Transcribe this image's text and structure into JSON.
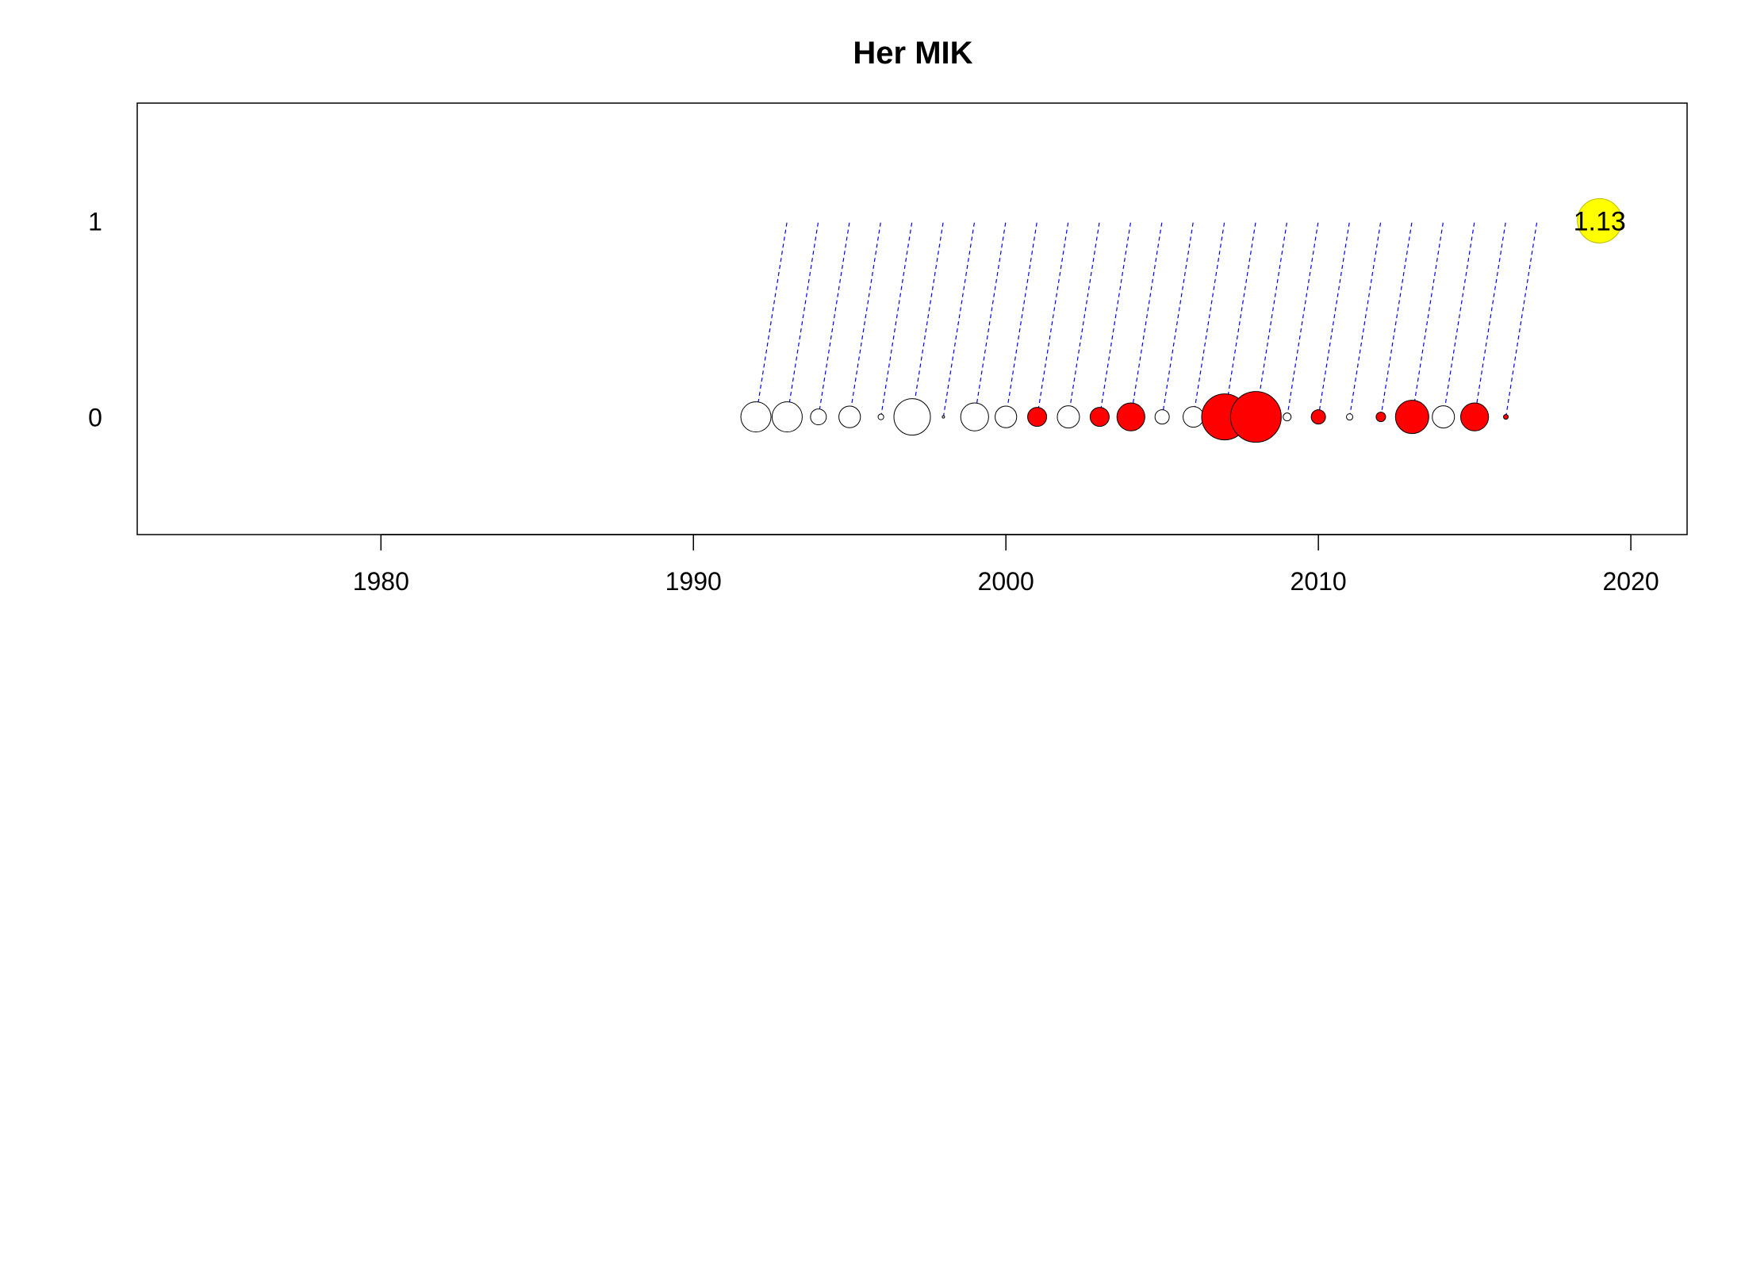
{
  "chart_data": {
    "type": "scatter",
    "title": "Her MIK",
    "xlabel": "",
    "ylabel": "",
    "xlim": [
      1972.2,
      2021.8
    ],
    "ylim": [
      -0.6,
      1.6
    ],
    "x_ticks": [
      1980,
      1990,
      2000,
      2010,
      2020
    ],
    "y_ticks": [
      0,
      1
    ],
    "grid": false,
    "legend": "none",
    "colors": {
      "positive": "#ff0000",
      "negative": "#ffffff",
      "outline": "#000000",
      "connector": "#0000ff",
      "prediction": "#ffff00"
    },
    "residuals": [
      {
        "year": 1992,
        "size": 0.95,
        "sign": "negative"
      },
      {
        "year": 1993,
        "size": 0.95,
        "sign": "negative"
      },
      {
        "year": 1994,
        "size": 0.5,
        "sign": "negative"
      },
      {
        "year": 1995,
        "size": 0.68,
        "sign": "negative"
      },
      {
        "year": 1996,
        "size": 0.18,
        "sign": "negative"
      },
      {
        "year": 1997,
        "size": 1.15,
        "sign": "negative"
      },
      {
        "year": 1998,
        "size": 0.06,
        "sign": "negative"
      },
      {
        "year": 1999,
        "size": 0.88,
        "sign": "negative"
      },
      {
        "year": 2000,
        "size": 0.68,
        "sign": "negative"
      },
      {
        "year": 2001,
        "size": 0.6,
        "sign": "positive"
      },
      {
        "year": 2002,
        "size": 0.7,
        "sign": "negative"
      },
      {
        "year": 2003,
        "size": 0.6,
        "sign": "positive"
      },
      {
        "year": 2004,
        "size": 0.88,
        "sign": "positive"
      },
      {
        "year": 2005,
        "size": 0.45,
        "sign": "negative"
      },
      {
        "year": 2006,
        "size": 0.65,
        "sign": "negative"
      },
      {
        "year": 2007,
        "size": 1.45,
        "sign": "positive"
      },
      {
        "year": 2008,
        "size": 1.6,
        "sign": "positive"
      },
      {
        "year": 2009,
        "size": 0.25,
        "sign": "negative"
      },
      {
        "year": 2010,
        "size": 0.45,
        "sign": "positive"
      },
      {
        "year": 2011,
        "size": 0.2,
        "sign": "negative"
      },
      {
        "year": 2012,
        "size": 0.3,
        "sign": "positive"
      },
      {
        "year": 2013,
        "size": 1.05,
        "sign": "positive"
      },
      {
        "year": 2014,
        "size": 0.7,
        "sign": "negative"
      },
      {
        "year": 2015,
        "size": 0.88,
        "sign": "positive"
      },
      {
        "year": 2016,
        "size": 0.15,
        "sign": "positive"
      }
    ],
    "connectors": [
      {
        "from_year": 1992,
        "to_year": 1993
      },
      {
        "from_year": 1993,
        "to_year": 1994
      },
      {
        "from_year": 1994,
        "to_year": 1995
      },
      {
        "from_year": 1995,
        "to_year": 1996
      },
      {
        "from_year": 1996,
        "to_year": 1997
      },
      {
        "from_year": 1997,
        "to_year": 1998
      },
      {
        "from_year": 1998,
        "to_year": 1999
      },
      {
        "from_year": 1999,
        "to_year": 2000
      },
      {
        "from_year": 2000,
        "to_year": 2001
      },
      {
        "from_year": 2001,
        "to_year": 2002
      },
      {
        "from_year": 2002,
        "to_year": 2003
      },
      {
        "from_year": 2003,
        "to_year": 2004
      },
      {
        "from_year": 2004,
        "to_year": 2005
      },
      {
        "from_year": 2005,
        "to_year": 2006
      },
      {
        "from_year": 2006,
        "to_year": 2007
      },
      {
        "from_year": 2007,
        "to_year": 2008
      },
      {
        "from_year": 2008,
        "to_year": 2009
      },
      {
        "from_year": 2009,
        "to_year": 2010
      },
      {
        "from_year": 2010,
        "to_year": 2011
      },
      {
        "from_year": 2011,
        "to_year": 2012
      },
      {
        "from_year": 2012,
        "to_year": 2013
      },
      {
        "from_year": 2013,
        "to_year": 2014
      },
      {
        "from_year": 2014,
        "to_year": 2015
      },
      {
        "from_year": 2015,
        "to_year": 2016
      },
      {
        "from_year": 2016,
        "to_year": 2017
      }
    ],
    "prediction": {
      "year": 2019,
      "y": 1,
      "label": "1.13",
      "size": 0.8
    }
  }
}
